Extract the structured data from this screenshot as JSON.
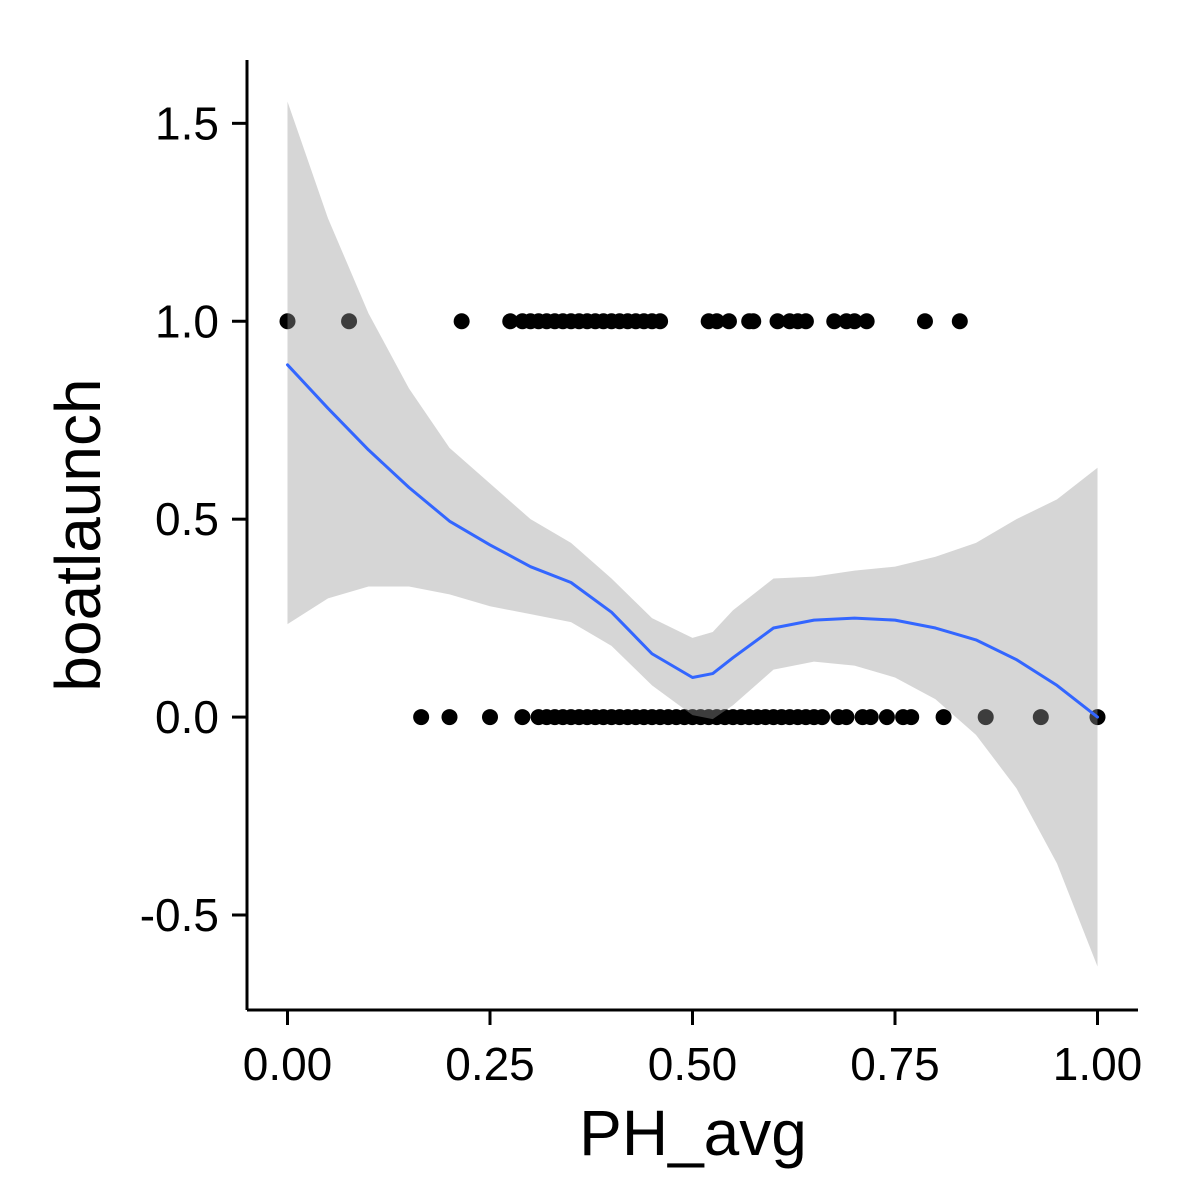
{
  "chart_data": {
    "type": "scatter",
    "title": "",
    "xlabel": "PH_avg",
    "ylabel": "boatlaunch",
    "xlim": [
      -0.05,
      1.05
    ],
    "ylim": [
      -0.74,
      1.66
    ],
    "xticks": [
      0.0,
      0.25,
      0.5,
      0.75,
      1.0
    ],
    "xtick_labels": [
      "0.00",
      "0.25",
      "0.50",
      "0.75",
      "1.00"
    ],
    "yticks": [
      -0.5,
      0.0,
      0.5,
      1.0,
      1.5
    ],
    "ytick_labels": [
      "-0.5",
      "0.0",
      "0.5",
      "1.0",
      "1.5"
    ],
    "grid": false,
    "legend": "none",
    "colors": {
      "points": "#000000",
      "smooth_line": "#3366FF",
      "confidence_band": "#999999"
    },
    "series": [
      {
        "type": "scatter",
        "x": [
          0.0,
          0.076,
          0.215,
          0.275,
          0.29,
          0.3,
          0.31,
          0.32,
          0.33,
          0.34,
          0.35,
          0.36,
          0.37,
          0.38,
          0.39,
          0.4,
          0.41,
          0.42,
          0.43,
          0.44,
          0.45,
          0.46,
          0.52,
          0.53,
          0.545,
          0.57,
          0.575,
          0.605,
          0.62,
          0.63,
          0.64,
          0.675,
          0.69,
          0.7,
          0.715,
          0.787,
          0.83,
          0.165,
          0.2,
          0.25,
          0.29,
          0.31,
          0.32,
          0.33,
          0.34,
          0.35,
          0.36,
          0.37,
          0.38,
          0.39,
          0.4,
          0.41,
          0.42,
          0.43,
          0.44,
          0.45,
          0.46,
          0.47,
          0.48,
          0.49,
          0.5,
          0.51,
          0.52,
          0.53,
          0.54,
          0.55,
          0.56,
          0.57,
          0.58,
          0.59,
          0.6,
          0.61,
          0.62,
          0.63,
          0.64,
          0.65,
          0.66,
          0.68,
          0.69,
          0.71,
          0.72,
          0.74,
          0.76,
          0.77,
          0.81,
          0.862,
          0.93,
          1.0
        ],
        "y": [
          1,
          1,
          1,
          1,
          1,
          1,
          1,
          1,
          1,
          1,
          1,
          1,
          1,
          1,
          1,
          1,
          1,
          1,
          1,
          1,
          1,
          1,
          1,
          1,
          1,
          1,
          1,
          1,
          1,
          1,
          1,
          1,
          1,
          1,
          1,
          1,
          1,
          0,
          0,
          0,
          0,
          0,
          0,
          0,
          0,
          0,
          0,
          0,
          0,
          0,
          0,
          0,
          0,
          0,
          0,
          0,
          0,
          0,
          0,
          0,
          0,
          0,
          0,
          0,
          0,
          0,
          0,
          0,
          0,
          0,
          0,
          0,
          0,
          0,
          0,
          0,
          0,
          0,
          0,
          0,
          0,
          0,
          0,
          0,
          0,
          0,
          0,
          0
        ]
      },
      {
        "type": "smooth",
        "x": [
          0.0,
          0.05,
          0.1,
          0.15,
          0.2,
          0.25,
          0.3,
          0.35,
          0.4,
          0.45,
          0.5,
          0.525,
          0.55,
          0.6,
          0.65,
          0.7,
          0.75,
          0.8,
          0.85,
          0.9,
          0.95,
          1.0
        ],
        "y": [
          0.89,
          0.78,
          0.675,
          0.58,
          0.495,
          0.435,
          0.38,
          0.34,
          0.265,
          0.16,
          0.1,
          0.11,
          0.15,
          0.225,
          0.245,
          0.25,
          0.245,
          0.225,
          0.195,
          0.145,
          0.08,
          0.0
        ],
        "ymin": [
          0.235,
          0.3,
          0.33,
          0.33,
          0.31,
          0.28,
          0.26,
          0.24,
          0.18,
          0.08,
          0.005,
          -0.005,
          0.03,
          0.12,
          0.14,
          0.13,
          0.1,
          0.045,
          -0.045,
          -0.18,
          -0.37,
          -0.63
        ],
        "ymax": [
          1.555,
          1.26,
          1.02,
          0.83,
          0.68,
          0.59,
          0.5,
          0.44,
          0.35,
          0.25,
          0.2,
          0.215,
          0.27,
          0.35,
          0.355,
          0.37,
          0.38,
          0.405,
          0.44,
          0.5,
          0.55,
          0.63
        ]
      }
    ]
  }
}
